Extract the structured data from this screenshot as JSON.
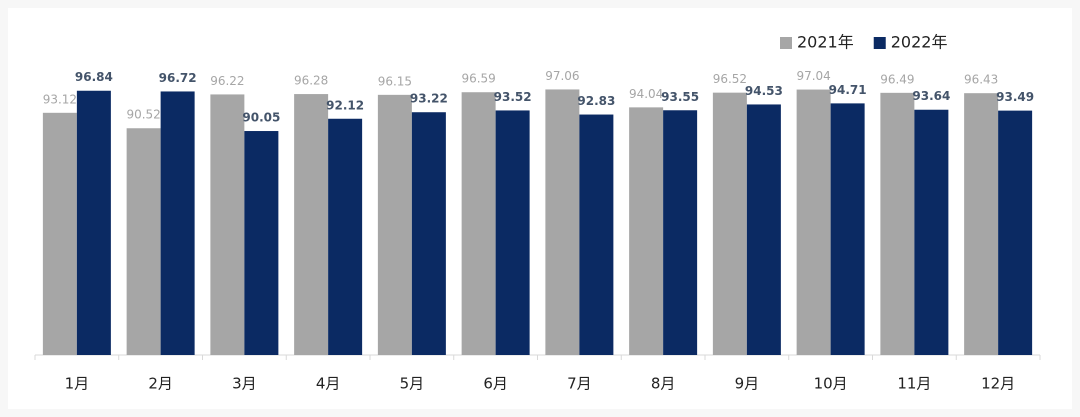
{
  "chart_data": {
    "type": "bar",
    "categories": [
      "1月",
      "2月",
      "3月",
      "4月",
      "5月",
      "6月",
      "7月",
      "8月",
      "9月",
      "10月",
      "11月",
      "12月"
    ],
    "series": [
      {
        "name": "2021年",
        "color": "#a6a6a6",
        "values": [
          93.12,
          90.52,
          96.22,
          96.28,
          96.15,
          96.59,
          97.06,
          94.04,
          96.52,
          97.04,
          96.49,
          96.43
        ]
      },
      {
        "name": "2022年",
        "color": "#0b2a63",
        "values": [
          96.84,
          96.72,
          90.05,
          92.12,
          93.22,
          93.52,
          92.83,
          93.55,
          94.53,
          94.71,
          93.64,
          93.49
        ]
      }
    ],
    "ylim": [
      52.3,
      100
    ],
    "legend": "top-right"
  }
}
